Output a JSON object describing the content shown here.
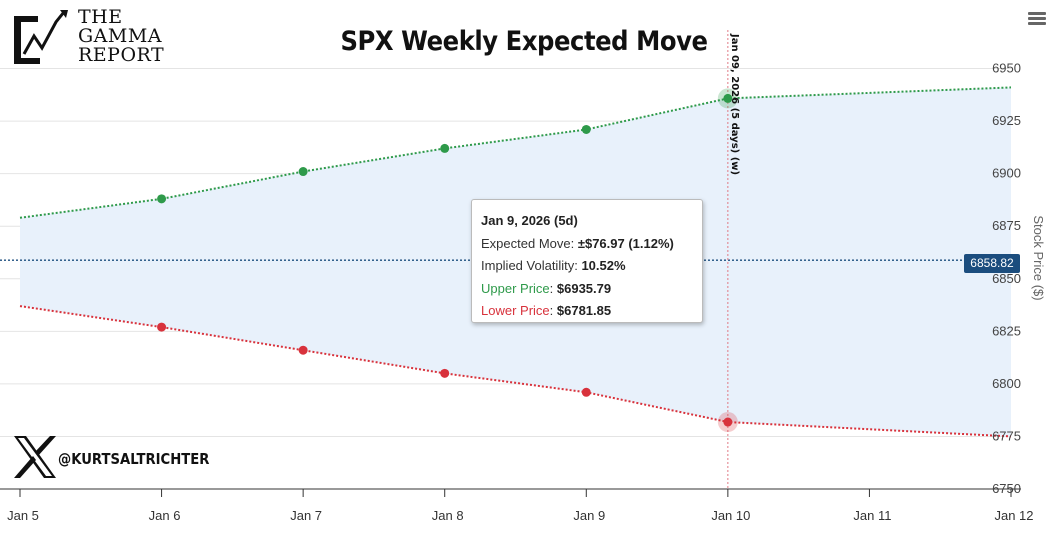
{
  "brand": {
    "logo_lines": [
      "THE",
      "GAMMA",
      "REPORT"
    ],
    "handle": "@KURTSALTRICHTER"
  },
  "chart_data": {
    "type": "line",
    "title": "SPX Weekly Expected Move",
    "xlabel": "",
    "ylabel": "Stock Price ($)",
    "x_ticks": [
      "Jan 5",
      "Jan 6",
      "Jan 7",
      "Jan 8",
      "Jan 9",
      "Jan 10",
      "Jan 11",
      "Jan 12"
    ],
    "y_ticks": [
      6750,
      6775,
      6800,
      6825,
      6850,
      6875,
      6900,
      6925,
      6950
    ],
    "xlim": [
      0,
      7
    ],
    "ylim": [
      6750,
      6955
    ],
    "series": [
      {
        "name": "Upper Price",
        "color": "#2e9a4a",
        "x": [
          0,
          1,
          2,
          3,
          4,
          5,
          7
        ],
        "values": [
          6879,
          6888,
          6901,
          6912,
          6921,
          6935.79,
          6941
        ],
        "markers_index": [
          1,
          2,
          3,
          4,
          5
        ]
      },
      {
        "name": "Lower Price",
        "color": "#d8323c",
        "x": [
          0,
          1,
          2,
          3,
          4,
          5,
          7
        ],
        "values": [
          6837,
          6827,
          6816,
          6805,
          6796,
          6781.85,
          6775
        ],
        "markers_index": [
          1,
          2,
          3,
          4,
          5
        ]
      }
    ],
    "current_price": 6858.82,
    "current_price_label": "6858.82",
    "expiry_x": 5,
    "expiry_label": "Jan 09, 2026 (5 days) (w)",
    "band_color": "#e8f1fb",
    "grid": true,
    "legend": "none"
  },
  "tooltip": {
    "date": "Jan 9, 2026 (5d)",
    "expected_move_label": "Expected Move: ",
    "expected_move_value": "±$76.97 (1.12%)",
    "iv_label": "Implied Volatility: ",
    "iv_value": "10.52%",
    "upper_label": "Upper Price",
    "upper_value": "$6935.79",
    "lower_label": "Lower Price",
    "lower_value": "$6781.85"
  },
  "icons": {
    "menu": "hamburger-menu-icon",
    "x_logo": "x-logo-icon"
  }
}
